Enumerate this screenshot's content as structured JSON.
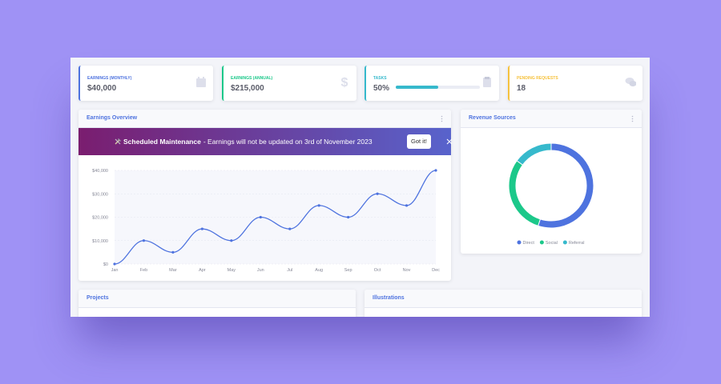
{
  "cards": [
    {
      "title": "EARNINGS (MONTHLY)",
      "value": "$40,000",
      "color": "#4e73df"
    },
    {
      "title": "EARNINGS (ANNUAL)",
      "value": "$215,000",
      "color": "#1cc88a"
    },
    {
      "title": "TASKS",
      "value": "50%",
      "progress": 50,
      "color": "#36b9cc"
    },
    {
      "title": "PENDING REQUESTS",
      "value": "18",
      "color": "#f6c23e"
    }
  ],
  "banner": {
    "title": "Scheduled Maintenance",
    "message": "- Earnings will not be updated on 3rd of November 2023",
    "button": "Got it!"
  },
  "chart_data": [
    {
      "type": "line",
      "title": "Earnings Overview",
      "categories": [
        "Jan",
        "Feb",
        "Mar",
        "Apr",
        "May",
        "Jun",
        "Jul",
        "Aug",
        "Sep",
        "Oct",
        "Nov",
        "Dec"
      ],
      "values": [
        0,
        10000,
        5000,
        15000,
        10000,
        20000,
        15000,
        25000,
        20000,
        30000,
        25000,
        40000
      ],
      "color": "#4e73df",
      "ylim": [
        0,
        40000
      ],
      "yticks": [
        {
          "value": 0,
          "label": "$0"
        },
        {
          "value": 10000,
          "label": "$10,000"
        },
        {
          "value": 20000,
          "label": "$20,000"
        },
        {
          "value": 30000,
          "label": "$30,000"
        },
        {
          "value": 40000,
          "label": "$40,000"
        }
      ],
      "grid": true
    },
    {
      "type": "pie",
      "donut": true,
      "title": "Revenue Sources",
      "categories": [
        "Direct",
        "Social",
        "Referral"
      ],
      "values": [
        55,
        30,
        15
      ],
      "colors": [
        "#4e73df",
        "#1cc88a",
        "#36b9cc"
      ]
    }
  ],
  "panels": [
    {
      "title": "Projects"
    },
    {
      "title": "Illustrations"
    }
  ]
}
